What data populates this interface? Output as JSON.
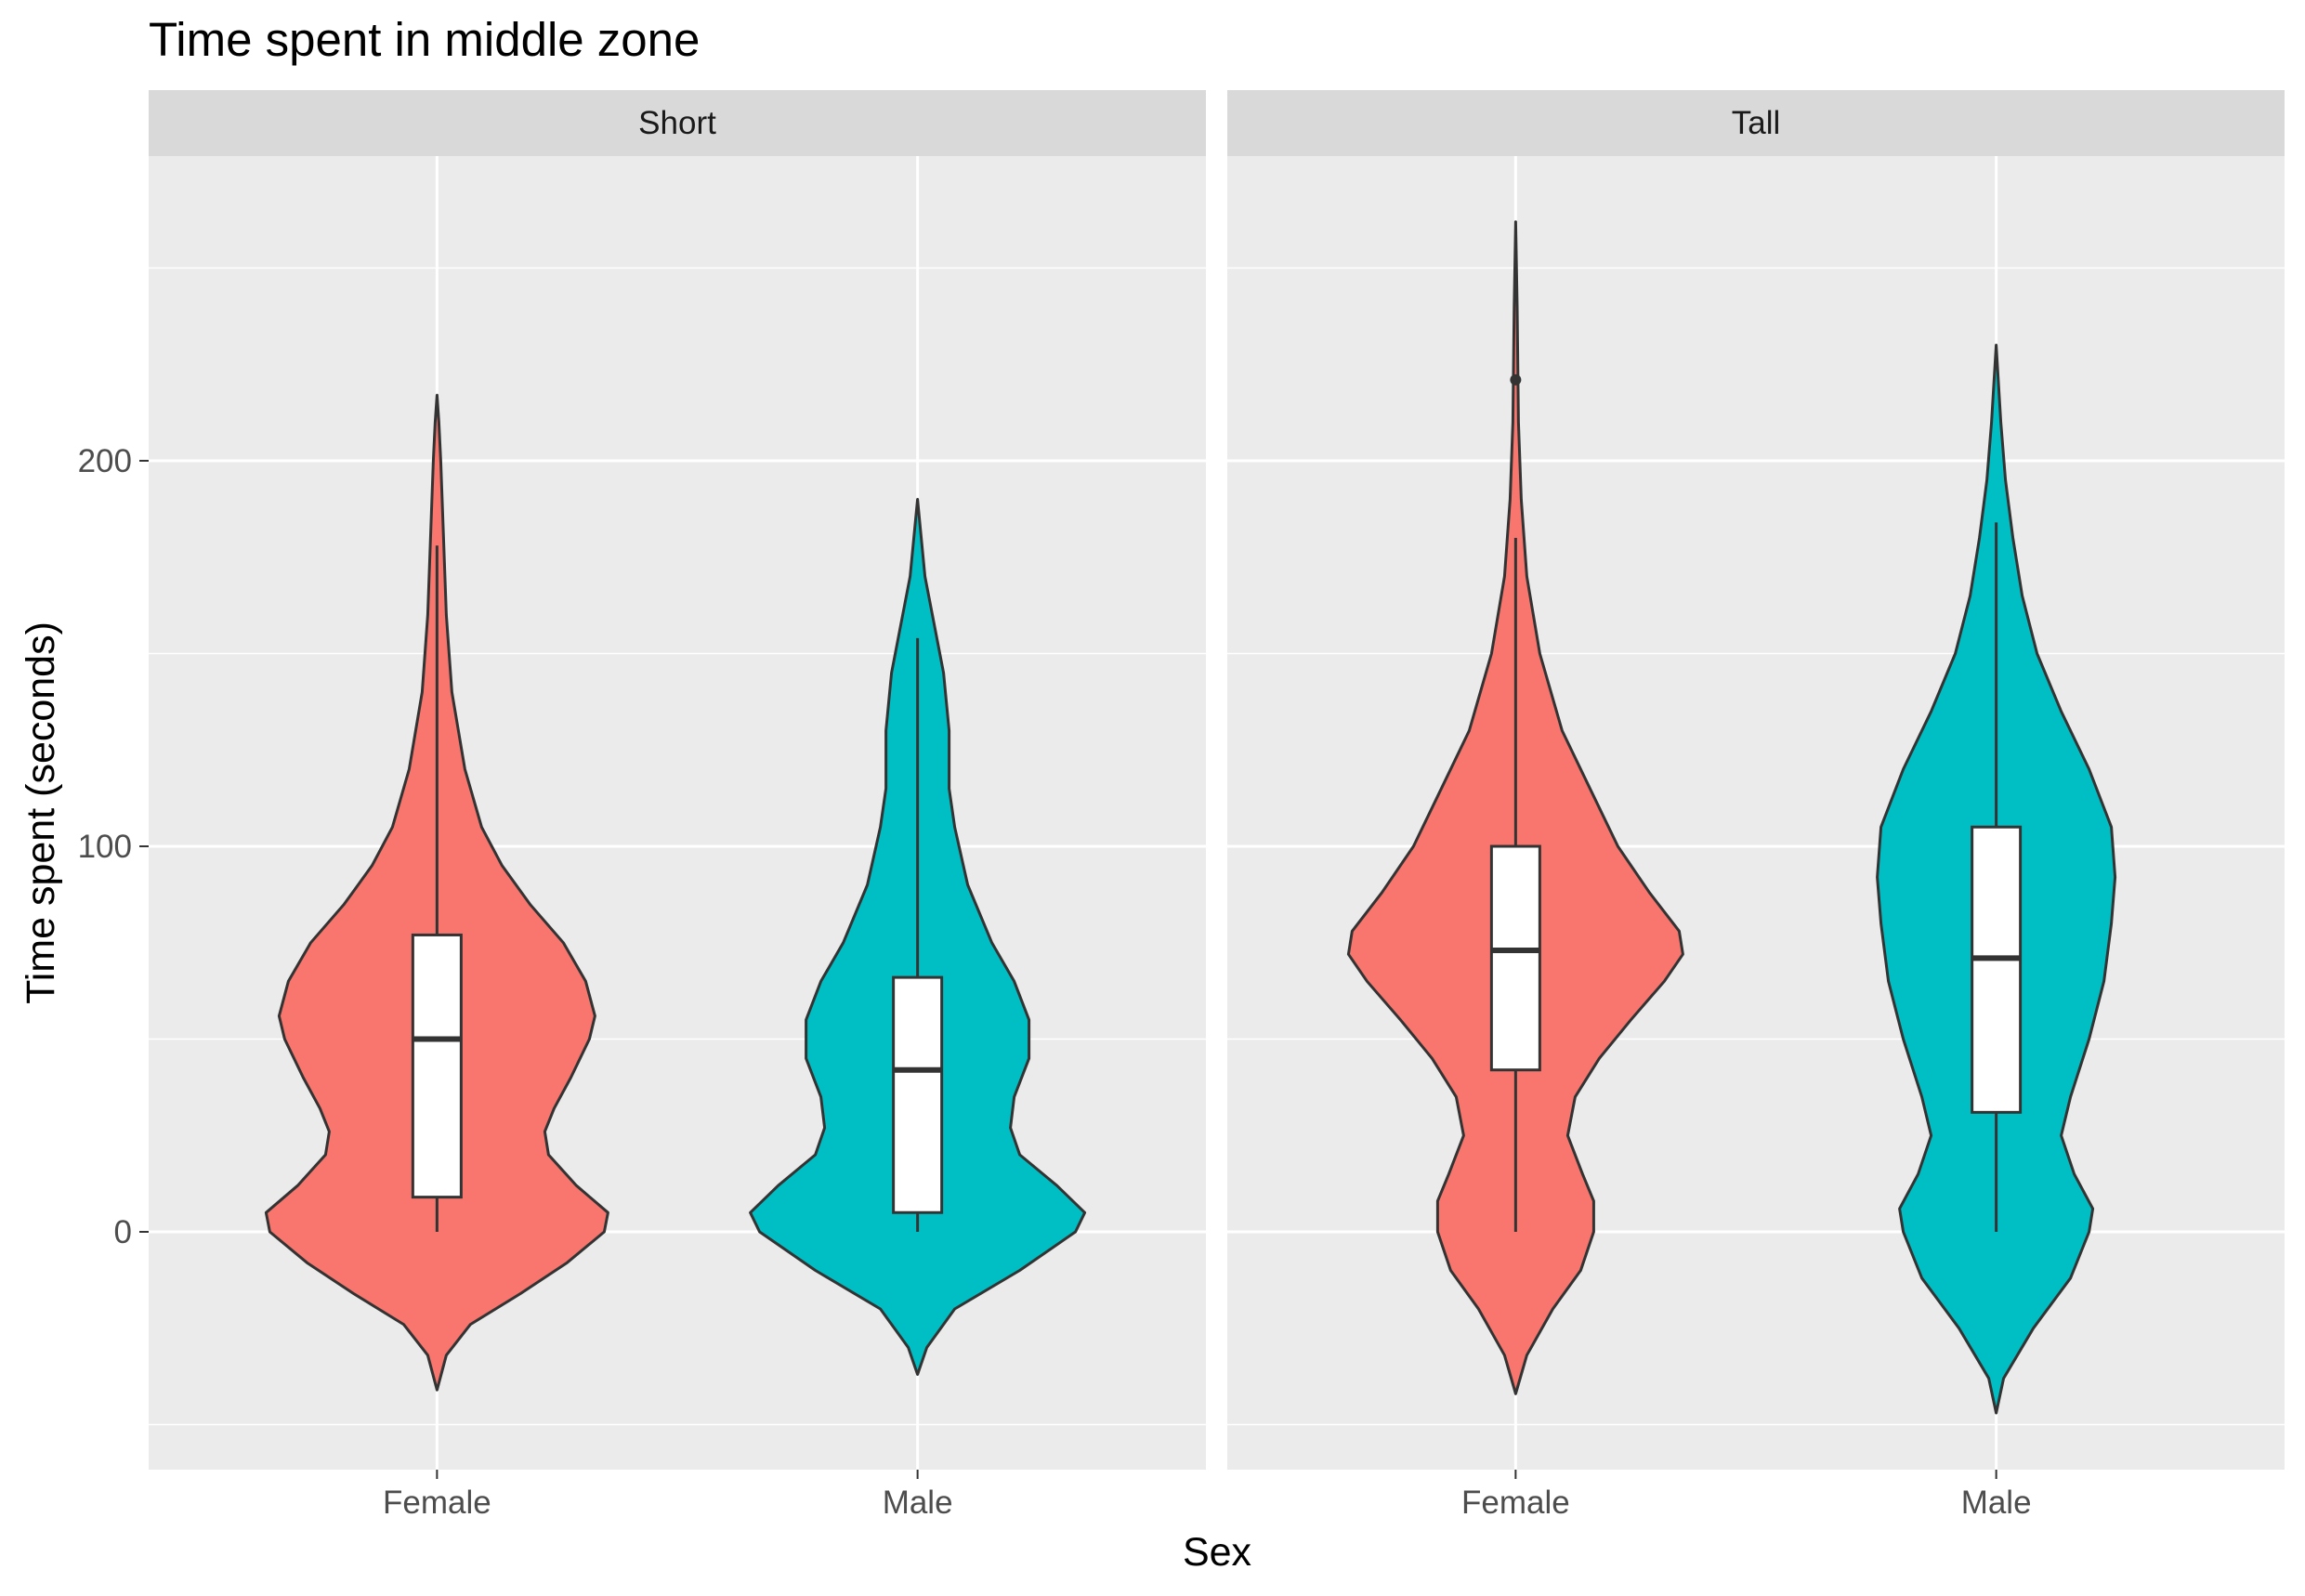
{
  "chart_data": {
    "type": "violin",
    "title": "Time spent in middle zone",
    "xlabel": "Sex",
    "ylabel": "Time spent (seconds)",
    "ylim": [
      -62,
      278
    ],
    "yticks": [
      0,
      100,
      200
    ],
    "grid": true,
    "legend": "none",
    "facets": [
      {
        "label": "Short",
        "groups": [
          {
            "category": "Female",
            "color": "#F8766D",
            "box": {
              "lower_whisker": 0,
              "q1": 9,
              "median": 50,
              "q3": 77,
              "upper_whisker": 178
            },
            "outliers": [],
            "violin_halfwidth": [
              [
                -41,
                0
              ],
              [
                -32,
                0.05
              ],
              [
                -24,
                0.18
              ],
              [
                -16,
                0.45
              ],
              [
                -8,
                0.7
              ],
              [
                0,
                0.9
              ],
              [
                5,
                0.92
              ],
              [
                12,
                0.75
              ],
              [
                20,
                0.6
              ],
              [
                26,
                0.58
              ],
              [
                32,
                0.63
              ],
              [
                40,
                0.72
              ],
              [
                50,
                0.82
              ],
              [
                56,
                0.85
              ],
              [
                65,
                0.8
              ],
              [
                75,
                0.68
              ],
              [
                85,
                0.5
              ],
              [
                95,
                0.35
              ],
              [
                105,
                0.24
              ],
              [
                120,
                0.15
              ],
              [
                140,
                0.08
              ],
              [
                160,
                0.05
              ],
              [
                180,
                0.035
              ],
              [
                200,
                0.02
              ],
              [
                210,
                0.01
              ],
              [
                217,
                0
              ]
            ]
          },
          {
            "category": "Male",
            "color": "#00BFC4",
            "box": {
              "lower_whisker": 0,
              "q1": 5,
              "median": 42,
              "q3": 66,
              "upper_whisker": 154
            },
            "outliers": [],
            "violin_halfwidth": [
              [
                -37,
                0
              ],
              [
                -30,
                0.05
              ],
              [
                -20,
                0.2
              ],
              [
                -10,
                0.55
              ],
              [
                0,
                0.85
              ],
              [
                5,
                0.9
              ],
              [
                12,
                0.75
              ],
              [
                20,
                0.55
              ],
              [
                27,
                0.5
              ],
              [
                35,
                0.52
              ],
              [
                45,
                0.6
              ],
              [
                55,
                0.6
              ],
              [
                65,
                0.52
              ],
              [
                75,
                0.4
              ],
              [
                90,
                0.27
              ],
              [
                105,
                0.2
              ],
              [
                115,
                0.17
              ],
              [
                130,
                0.17
              ],
              [
                145,
                0.14
              ],
              [
                160,
                0.08
              ],
              [
                170,
                0.04
              ],
              [
                180,
                0.02
              ],
              [
                190,
                0
              ]
            ]
          }
        ]
      },
      {
        "label": "Tall",
        "groups": [
          {
            "category": "Female",
            "color": "#F8766D",
            "box": {
              "lower_whisker": 0,
              "q1": 42,
              "median": 73,
              "q3": 100,
              "upper_whisker": 180
            },
            "outliers": [
              221
            ],
            "violin_halfwidth": [
              [
                -42,
                0
              ],
              [
                -32,
                0.06
              ],
              [
                -20,
                0.2
              ],
              [
                -10,
                0.35
              ],
              [
                0,
                0.42
              ],
              [
                8,
                0.42
              ],
              [
                15,
                0.36
              ],
              [
                25,
                0.28
              ],
              [
                35,
                0.32
              ],
              [
                45,
                0.45
              ],
              [
                55,
                0.62
              ],
              [
                65,
                0.8
              ],
              [
                72,
                0.9
              ],
              [
                78,
                0.88
              ],
              [
                88,
                0.72
              ],
              [
                100,
                0.55
              ],
              [
                115,
                0.4
              ],
              [
                130,
                0.25
              ],
              [
                150,
                0.13
              ],
              [
                170,
                0.06
              ],
              [
                190,
                0.03
              ],
              [
                210,
                0.015
              ],
              [
                240,
                0.008
              ],
              [
                262,
                0
              ]
            ]
          },
          {
            "category": "Male",
            "color": "#00BFC4",
            "box": {
              "lower_whisker": 0,
              "q1": 31,
              "median": 71,
              "q3": 105,
              "upper_whisker": 184
            },
            "outliers": [],
            "violin_halfwidth": [
              [
                -47,
                0
              ],
              [
                -38,
                0.04
              ],
              [
                -25,
                0.2
              ],
              [
                -12,
                0.4
              ],
              [
                0,
                0.5
              ],
              [
                6,
                0.52
              ],
              [
                15,
                0.42
              ],
              [
                25,
                0.35
              ],
              [
                35,
                0.4
              ],
              [
                50,
                0.5
              ],
              [
                65,
                0.58
              ],
              [
                80,
                0.62
              ],
              [
                92,
                0.64
              ],
              [
                105,
                0.62
              ],
              [
                120,
                0.5
              ],
              [
                135,
                0.35
              ],
              [
                150,
                0.22
              ],
              [
                165,
                0.14
              ],
              [
                180,
                0.09
              ],
              [
                195,
                0.05
              ],
              [
                210,
                0.025
              ],
              [
                230,
                0
              ]
            ]
          }
        ]
      }
    ]
  }
}
